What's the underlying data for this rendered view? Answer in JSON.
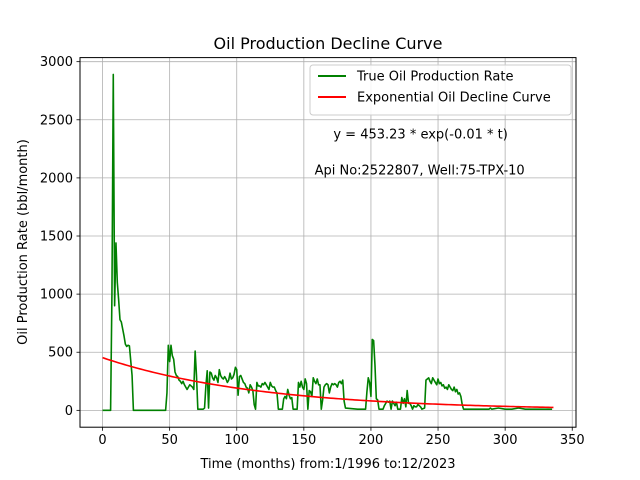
{
  "chart_data": {
    "type": "line",
    "title": "Oil Production Decline Curve",
    "xlabel": "Time (months) from:1/1996 to:12/2023",
    "ylabel": "Oil Production Rate (bbl/month)",
    "xlim": [
      -16.8,
      352.8
    ],
    "ylim": [
      -145,
      3035
    ],
    "xticks": [
      0,
      50,
      100,
      150,
      200,
      250,
      300,
      350
    ],
    "yticks": [
      0,
      500,
      1000,
      1500,
      2000,
      2500,
      3000
    ],
    "grid": true,
    "legend_position": "top-right",
    "annotations": [
      {
        "text": "y = 453.23 * exp(-0.01 * t)",
        "x": 172,
        "y": 2340
      },
      {
        "text": "Api No:2522807, Well:75-TPX-10",
        "x": 158,
        "y": 2030
      }
    ],
    "series": [
      {
        "name": "True Oil Production Rate",
        "color": "#008000",
        "style": "solid",
        "points": [
          [
            0,
            0
          ],
          [
            6,
            0
          ],
          [
            7,
            1000
          ],
          [
            8,
            2890
          ],
          [
            9,
            900
          ],
          [
            10,
            1440
          ],
          [
            11,
            1100
          ],
          [
            12,
            950
          ],
          [
            13,
            780
          ],
          [
            14,
            760
          ],
          [
            15,
            700
          ],
          [
            16,
            640
          ],
          [
            17,
            570
          ],
          [
            18,
            550
          ],
          [
            19,
            560
          ],
          [
            20,
            555
          ],
          [
            22,
            300
          ],
          [
            23,
            0
          ],
          [
            30,
            0
          ],
          [
            40,
            0
          ],
          [
            47,
            0
          ],
          [
            48,
            150
          ],
          [
            49,
            560
          ],
          [
            50,
            420
          ],
          [
            51,
            560
          ],
          [
            52,
            470
          ],
          [
            53,
            440
          ],
          [
            54,
            330
          ],
          [
            55,
            300
          ],
          [
            56,
            290
          ],
          [
            57,
            260
          ],
          [
            58,
            250
          ],
          [
            59,
            230
          ],
          [
            60,
            250
          ],
          [
            61,
            220
          ],
          [
            62,
            200
          ],
          [
            63,
            180
          ],
          [
            64,
            200
          ],
          [
            65,
            220
          ],
          [
            66,
            210
          ],
          [
            67,
            200
          ],
          [
            68,
            180
          ],
          [
            69,
            510
          ],
          [
            70,
            300
          ],
          [
            71,
            10
          ],
          [
            72,
            10
          ],
          [
            75,
            10
          ],
          [
            76,
            20
          ],
          [
            77,
            210
          ],
          [
            78,
            340
          ],
          [
            79,
            20
          ],
          [
            80,
            330
          ],
          [
            81,
            320
          ],
          [
            82,
            280
          ],
          [
            83,
            260
          ],
          [
            84,
            300
          ],
          [
            85,
            280
          ],
          [
            86,
            240
          ],
          [
            87,
            350
          ],
          [
            88,
            300
          ],
          [
            89,
            280
          ],
          [
            90,
            270
          ],
          [
            91,
            290
          ],
          [
            92,
            270
          ],
          [
            93,
            240
          ],
          [
            94,
            260
          ],
          [
            95,
            320
          ],
          [
            96,
            270
          ],
          [
            97,
            280
          ],
          [
            98,
            310
          ],
          [
            99,
            370
          ],
          [
            100,
            350
          ],
          [
            101,
            130
          ],
          [
            102,
            290
          ],
          [
            103,
            300
          ],
          [
            104,
            270
          ],
          [
            105,
            240
          ],
          [
            106,
            230
          ],
          [
            107,
            200
          ],
          [
            108,
            190
          ],
          [
            109,
            150
          ],
          [
            110,
            220
          ],
          [
            111,
            200
          ],
          [
            112,
            170
          ],
          [
            113,
            50
          ],
          [
            114,
            10
          ],
          [
            115,
            240
          ],
          [
            116,
            210
          ],
          [
            117,
            210
          ],
          [
            118,
            200
          ],
          [
            119,
            230
          ],
          [
            120,
            220
          ],
          [
            121,
            240
          ],
          [
            122,
            220
          ],
          [
            123,
            200
          ],
          [
            124,
            180
          ],
          [
            125,
            240
          ],
          [
            126,
            210
          ],
          [
            127,
            200
          ],
          [
            128,
            200
          ],
          [
            129,
            170
          ],
          [
            130,
            150
          ],
          [
            131,
            10
          ],
          [
            134,
            10
          ],
          [
            135,
            100
          ],
          [
            136,
            120
          ],
          [
            137,
            100
          ],
          [
            138,
            180
          ],
          [
            139,
            130
          ],
          [
            140,
            100
          ],
          [
            141,
            110
          ],
          [
            142,
            10
          ],
          [
            145,
            10
          ],
          [
            146,
            240
          ],
          [
            147,
            200
          ],
          [
            148,
            250
          ],
          [
            149,
            200
          ],
          [
            150,
            180
          ],
          [
            151,
            270
          ],
          [
            152,
            230
          ],
          [
            153,
            10
          ],
          [
            154,
            170
          ],
          [
            155,
            160
          ],
          [
            156,
            120
          ],
          [
            157,
            280
          ],
          [
            158,
            250
          ],
          [
            159,
            230
          ],
          [
            160,
            270
          ],
          [
            161,
            220
          ],
          [
            162,
            220
          ],
          [
            163,
            10
          ],
          [
            164,
            90
          ],
          [
            165,
            200
          ],
          [
            166,
            220
          ],
          [
            167,
            230
          ],
          [
            168,
            220
          ],
          [
            169,
            150
          ],
          [
            170,
            200
          ],
          [
            171,
            230
          ],
          [
            172,
            220
          ],
          [
            173,
            230
          ],
          [
            174,
            220
          ],
          [
            175,
            200
          ],
          [
            176,
            240
          ],
          [
            177,
            250
          ],
          [
            178,
            230
          ],
          [
            179,
            260
          ],
          [
            180,
            80
          ],
          [
            181,
            20
          ],
          [
            190,
            10
          ],
          [
            196,
            10
          ],
          [
            197,
            160
          ],
          [
            198,
            280
          ],
          [
            199,
            240
          ],
          [
            200,
            120
          ],
          [
            201,
            610
          ],
          [
            202,
            600
          ],
          [
            203,
            390
          ],
          [
            204,
            100
          ],
          [
            205,
            90
          ],
          [
            206,
            10
          ],
          [
            209,
            10
          ],
          [
            210,
            40
          ],
          [
            211,
            60
          ],
          [
            212,
            80
          ],
          [
            213,
            70
          ],
          [
            214,
            80
          ],
          [
            215,
            10
          ],
          [
            216,
            80
          ],
          [
            217,
            60
          ],
          [
            218,
            40
          ],
          [
            219,
            70
          ],
          [
            220,
            10
          ],
          [
            222,
            10
          ],
          [
            223,
            110
          ],
          [
            224,
            60
          ],
          [
            225,
            100
          ],
          [
            226,
            30
          ],
          [
            227,
            170
          ],
          [
            228,
            60
          ],
          [
            229,
            60
          ],
          [
            230,
            40
          ],
          [
            231,
            10
          ],
          [
            232,
            40
          ],
          [
            233,
            30
          ],
          [
            234,
            30
          ],
          [
            235,
            50
          ],
          [
            236,
            40
          ],
          [
            237,
            30
          ],
          [
            238,
            10
          ],
          [
            240,
            20
          ],
          [
            241,
            260
          ],
          [
            242,
            270
          ],
          [
            243,
            280
          ],
          [
            244,
            250
          ],
          [
            245,
            230
          ],
          [
            246,
            280
          ],
          [
            247,
            260
          ],
          [
            248,
            240
          ],
          [
            249,
            220
          ],
          [
            250,
            270
          ],
          [
            251,
            230
          ],
          [
            252,
            240
          ],
          [
            253,
            210
          ],
          [
            254,
            220
          ],
          [
            255,
            190
          ],
          [
            256,
            200
          ],
          [
            257,
            180
          ],
          [
            258,
            220
          ],
          [
            259,
            200
          ],
          [
            260,
            180
          ],
          [
            261,
            170
          ],
          [
            262,
            200
          ],
          [
            263,
            160
          ],
          [
            264,
            180
          ],
          [
            265,
            140
          ],
          [
            266,
            150
          ],
          [
            267,
            120
          ],
          [
            268,
            50
          ],
          [
            269,
            10
          ],
          [
            275,
            10
          ],
          [
            280,
            10
          ],
          [
            285,
            10
          ],
          [
            288,
            10
          ],
          [
            289,
            20
          ],
          [
            290,
            10
          ],
          [
            295,
            20
          ],
          [
            300,
            10
          ],
          [
            305,
            10
          ],
          [
            310,
            20
          ],
          [
            315,
            10
          ],
          [
            320,
            10
          ],
          [
            325,
            10
          ],
          [
            330,
            10
          ],
          [
            335,
            10
          ]
        ]
      },
      {
        "name": "Exponential Oil Decline Curve",
        "color": "#ff0000",
        "style": "solid",
        "model": {
          "a": 453.23,
          "b": -0.0086,
          "t_start": 0,
          "t_end": 336
        }
      }
    ]
  }
}
